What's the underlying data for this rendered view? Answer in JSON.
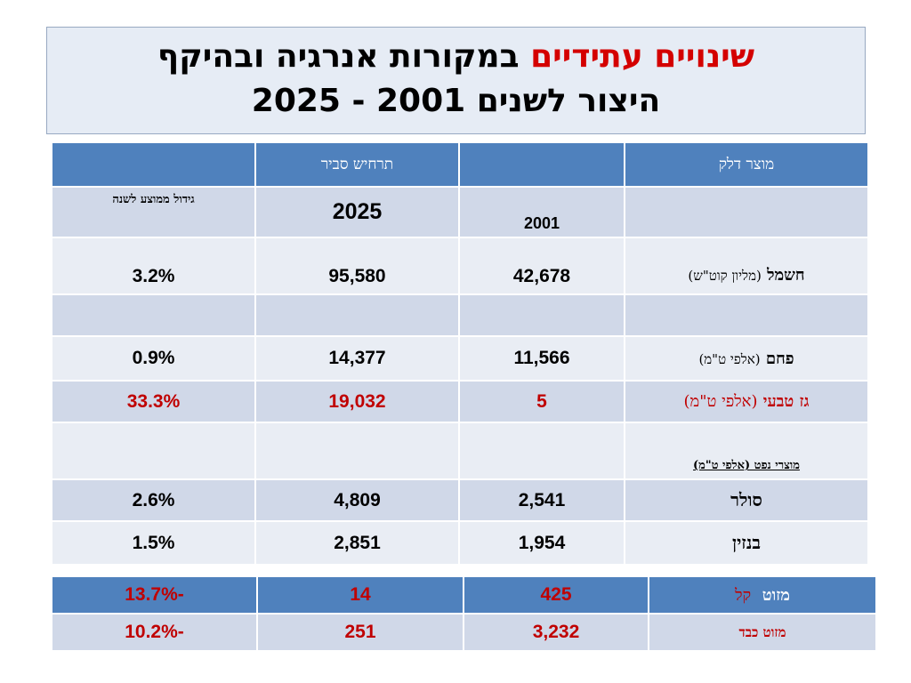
{
  "title": {
    "line1_red": "שינויים עתידיים",
    "line1_black": "במקורות אנרגיה ובהיקף",
    "line2": "היצור  לשנים 2001 - 2025"
  },
  "table": {
    "headers": {
      "product": "מוצר דלק",
      "blank1": "",
      "scenario": "תרחיש סביר",
      "blank2": ""
    },
    "subheader": {
      "year_2001": "2001",
      "year_2025": "2025",
      "growth": "גידול ממוצע לשנה"
    },
    "rows": {
      "electricity": {
        "name": "חשמל",
        "unit": "(מליון קוט\"ש)",
        "v2001": "42,678",
        "v2025": "95,580",
        "growth": "3.2%"
      },
      "coal": {
        "name": "פחם",
        "unit": "(אלפי ט\"מ)",
        "v2001": "11,566",
        "v2025": "14,377",
        "growth": "0.9%"
      },
      "gas": {
        "name": "גז טבעי",
        "unit": "(אלפי ט\"מ)",
        "v2001": "5",
        "v2025": "19,032",
        "growth": "33.3%"
      },
      "oil_products": {
        "label": "מוצרי נפט (אלפי ט\"מ)"
      },
      "diesel": {
        "name": "סולר",
        "v2001": "2,541",
        "v2025": "4,809",
        "growth": "2.6%"
      },
      "gasoline": {
        "name": "בנזין",
        "v2001": "1,954",
        "v2025": "2,851",
        "growth": "1.5%"
      }
    }
  },
  "table2": {
    "light_fuel": {
      "name": "מזוט",
      "qualifier": "קל",
      "v2001": "425",
      "v2025": "14",
      "growth": "-13.7%"
    },
    "heavy_fuel": {
      "name": "מזוט כבד",
      "v2001": "3,232",
      "v2025": "251",
      "growth": "-10.2%"
    }
  },
  "colors": {
    "header_blue": "#4f81bd",
    "row_dark": "#d0d8e8",
    "row_light": "#e9edf4",
    "accent_red": "#c00000"
  }
}
